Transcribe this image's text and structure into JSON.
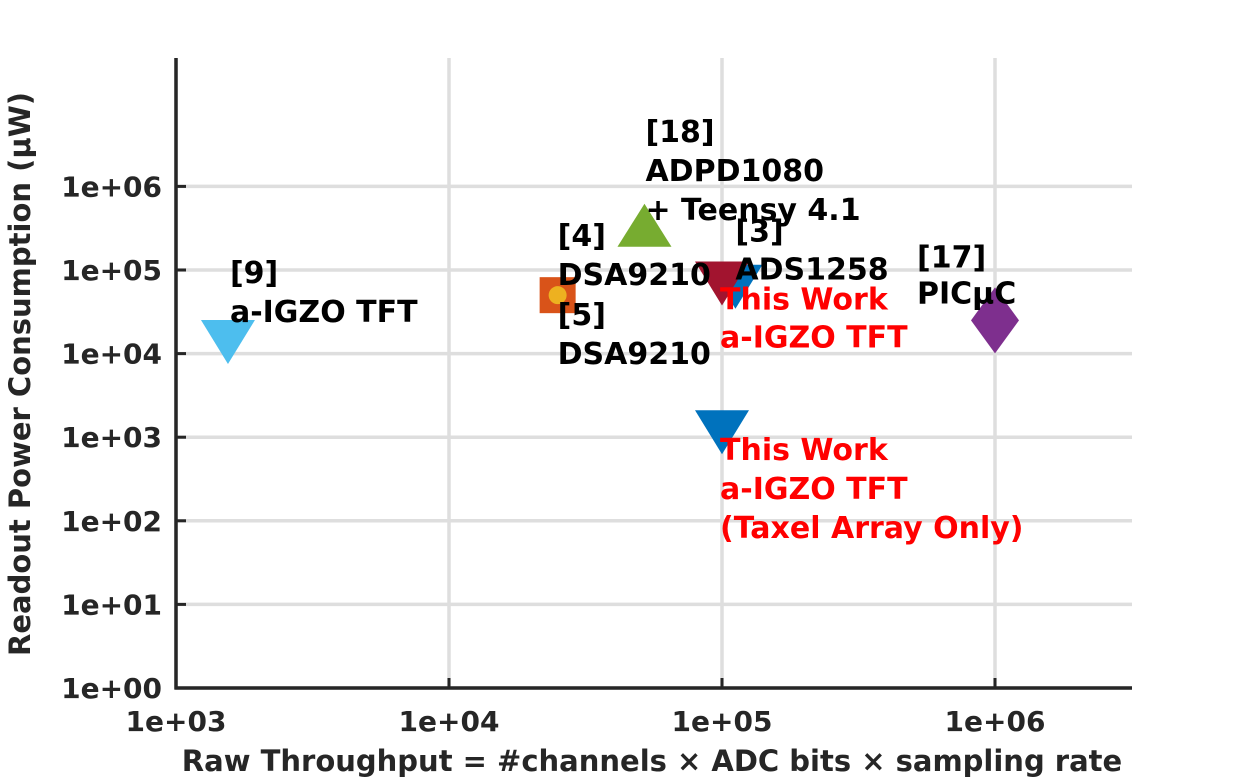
{
  "chart_data": {
    "type": "scatter",
    "title": "",
    "xlabel": "Raw Throughput = #channels × ADC bits × sampling rate",
    "ylabel": "Readout Power Consumption (μW)",
    "xscale": "log",
    "yscale": "log",
    "xlim": [
      1000,
      3500000
    ],
    "ylim": [
      1,
      70000000
    ],
    "grid": true,
    "xticks": [
      1000,
      10000,
      100000,
      1000000
    ],
    "xtick_labels": [
      "1e+03",
      "1e+04",
      "1e+05",
      "1e+06"
    ],
    "yticks": [
      1,
      10,
      100,
      1000,
      10000,
      100000,
      1000000
    ],
    "ytick_labels": [
      "1e+00",
      "1e+01",
      "1e+02",
      "1e+03",
      "1e+04",
      "1e+05",
      "1e+06"
    ],
    "points": [
      {
        "id": "ref9",
        "x": 1550,
        "y": 12000,
        "marker": "triangle-down",
        "color": "#4DBEEE",
        "lines": [
          "[9]",
          "a-IGZO TFT"
        ],
        "label_color": "#000000"
      },
      {
        "id": "ref4",
        "x": 25000,
        "y": 50000,
        "marker": "square",
        "color": "#D95319",
        "lines": [
          "[4]",
          "DSA9210"
        ],
        "label_color": "#000000"
      },
      {
        "id": "ref5",
        "x": 25000,
        "y": 50000,
        "marker": "circle",
        "color": "#EDB120",
        "lines": [
          "[5]",
          "DSA9210"
        ],
        "label_color": "#000000"
      },
      {
        "id": "ref18",
        "x": 52000,
        "y": 320000,
        "marker": "triangle-up",
        "color": "#77AC30",
        "lines": [
          "[18]",
          "ADPD1080",
          "+ Teensy 4.1"
        ],
        "label_color": "#000000"
      },
      {
        "id": "ref3",
        "x": 112000,
        "y": 55000,
        "marker": "triangle-down",
        "color": "#0072BD",
        "lines": [
          "[3]",
          "ADS1258"
        ],
        "label_color": "#000000"
      },
      {
        "id": "this_work",
        "x": 100000,
        "y": 60000,
        "marker": "triangle-down",
        "color": "#A2142F",
        "lines": [
          "This Work",
          "a-IGZO TFT"
        ],
        "label_color": "#FF0000"
      },
      {
        "id": "ref17",
        "x": 1000000,
        "y": 25000,
        "marker": "diamond",
        "color": "#7E2F8E",
        "lines": [
          "[17]",
          "PICμC"
        ],
        "label_color": "#000000"
      },
      {
        "id": "this_work_taxel",
        "x": 100000,
        "y": 1000,
        "marker": "triangle-down",
        "color": "#0072BD",
        "lines": [
          "This Work",
          "a-IGZO TFT",
          "(Taxel Array Only)"
        ],
        "label_color": "#FF0000"
      }
    ]
  }
}
